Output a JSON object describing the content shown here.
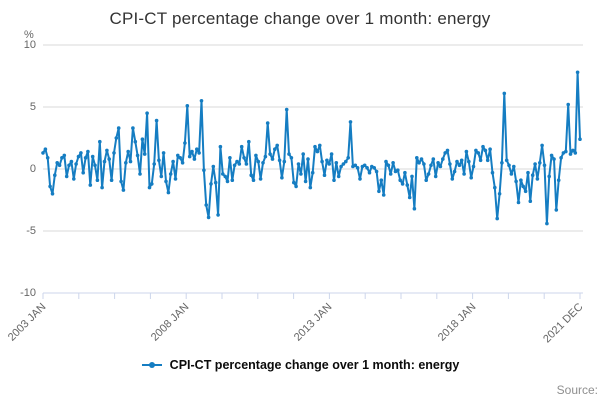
{
  "header": {
    "title": "CPI-CT percentage change over 1 month: energy"
  },
  "legend": {
    "label": "CPI-CT percentage change over 1 month: energy"
  },
  "footer": {
    "source_label": "Source:"
  },
  "colors": {
    "line": "#157dc2",
    "grid": "#d8d8d8",
    "axis": "#ccd6eb",
    "tick_text": "#666666",
    "title_text": "#333333",
    "legend_text": "#0b0b0b",
    "source_text": "#8f8f8f"
  },
  "chart_data": {
    "type": "line",
    "title": "CPI-CT percentage change over 1 month: energy",
    "xlabel": "",
    "ylabel": "%",
    "frequency": "monthly",
    "x_start": "2003 JAN",
    "x_end": "2021 DEC",
    "grid": "horizontal",
    "legend_position": "bottom-center",
    "y_axis": {
      "unit": "%",
      "range": [
        -10,
        10
      ],
      "ticks": [
        "10",
        "5",
        "0",
        "-5",
        "-10"
      ]
    },
    "x_axis": {
      "tick_count": 16,
      "labels": [
        {
          "text": "2003 JAN",
          "tick": 0
        },
        {
          "text": "2008 JAN",
          "tick": 4
        },
        {
          "text": "2013 JAN",
          "tick": 8
        },
        {
          "text": "2018 JAN",
          "tick": 12
        },
        {
          "text": "2021 DEC",
          "tick": 15
        }
      ]
    },
    "series": [
      {
        "name": "CPI-CT percentage change over 1 month: energy",
        "color": "#157dc2",
        "values": [
          1.3,
          1.6,
          0.9,
          -1.4,
          -2.0,
          -0.5,
          0.5,
          0.3,
          0.9,
          1.1,
          -0.6,
          0.3,
          0.6,
          -0.8,
          0.4,
          1.0,
          1.3,
          -0.3,
          0.9,
          1.4,
          -1.3,
          1.0,
          0.3,
          -0.9,
          2.2,
          -1.5,
          0.6,
          1.5,
          0.8,
          -0.9,
          1.3,
          2.5,
          3.3,
          -1.0,
          -1.7,
          0.5,
          1.4,
          0.6,
          3.3,
          2.2,
          1.1,
          -0.4,
          2.4,
          1.2,
          4.5,
          -1.5,
          -1.2,
          0.4,
          3.9,
          0.7,
          -0.6,
          1.3,
          -1.0,
          -1.9,
          -0.4,
          0.6,
          -0.8,
          1.1,
          0.9,
          0.5,
          2.1,
          5.1,
          1.0,
          1.4,
          0.8,
          1.6,
          1.3,
          5.5,
          -0.1,
          -2.9,
          -3.9,
          -1.2,
          0.2,
          -1.1,
          -3.7,
          1.8,
          -0.4,
          -0.6,
          -1.0,
          0.9,
          -0.9,
          0.3,
          0.6,
          0.4,
          1.8,
          0.9,
          0.4,
          2.2,
          -0.5,
          -0.9,
          1.1,
          0.6,
          -0.8,
          0.5,
          1.0,
          3.7,
          1.2,
          0.8,
          1.6,
          1.9,
          0.7,
          -0.7,
          0.6,
          4.8,
          1.2,
          0.9,
          -1.1,
          -1.4,
          0.4,
          -0.4,
          1.2,
          -1.0,
          0.8,
          -1.5,
          -0.3,
          1.8,
          1.4,
          1.9,
          0.6,
          -0.5,
          0.7,
          0.4,
          1.2,
          -0.9,
          0.5,
          -0.6,
          0.2,
          0.4,
          0.6,
          0.9,
          3.8,
          0.2,
          0.3,
          0.1,
          -0.8,
          0.2,
          0.3,
          0.1,
          -0.3,
          0.2,
          0.1,
          -0.2,
          -1.8,
          -0.9,
          -2.1,
          0.6,
          0.3,
          -0.4,
          0.5,
          -0.2,
          -0.1,
          -0.9,
          -1.2,
          -0.3,
          -1.3,
          -2.3,
          -0.6,
          -3.2,
          0.9,
          0.5,
          0.8,
          0.4,
          -0.9,
          -0.4,
          0.3,
          0.8,
          -0.6,
          0.5,
          0.2,
          0.8,
          1.3,
          1.5,
          0.4,
          -0.8,
          -0.2,
          0.6,
          0.3,
          0.7,
          -0.4,
          1.4,
          0.6,
          -0.7,
          0.2,
          1.5,
          1.3,
          0.7,
          1.8,
          1.5,
          0.7,
          1.6,
          -0.3,
          -1.5,
          -4.0,
          -2.0,
          0.5,
          6.1,
          0.7,
          0.3,
          -0.4,
          0.2,
          -1.0,
          -2.7,
          -0.9,
          -1.4,
          -1.8,
          -0.3,
          -2.6,
          -0.5,
          0.4,
          -0.8,
          0.5,
          1.9,
          0.3,
          -4.4,
          -0.6,
          1.1,
          0.8,
          -3.3,
          -0.9,
          0.9,
          1.3,
          1.4,
          5.2,
          1.2,
          1.5,
          1.3,
          7.8,
          2.4
        ]
      }
    ]
  }
}
